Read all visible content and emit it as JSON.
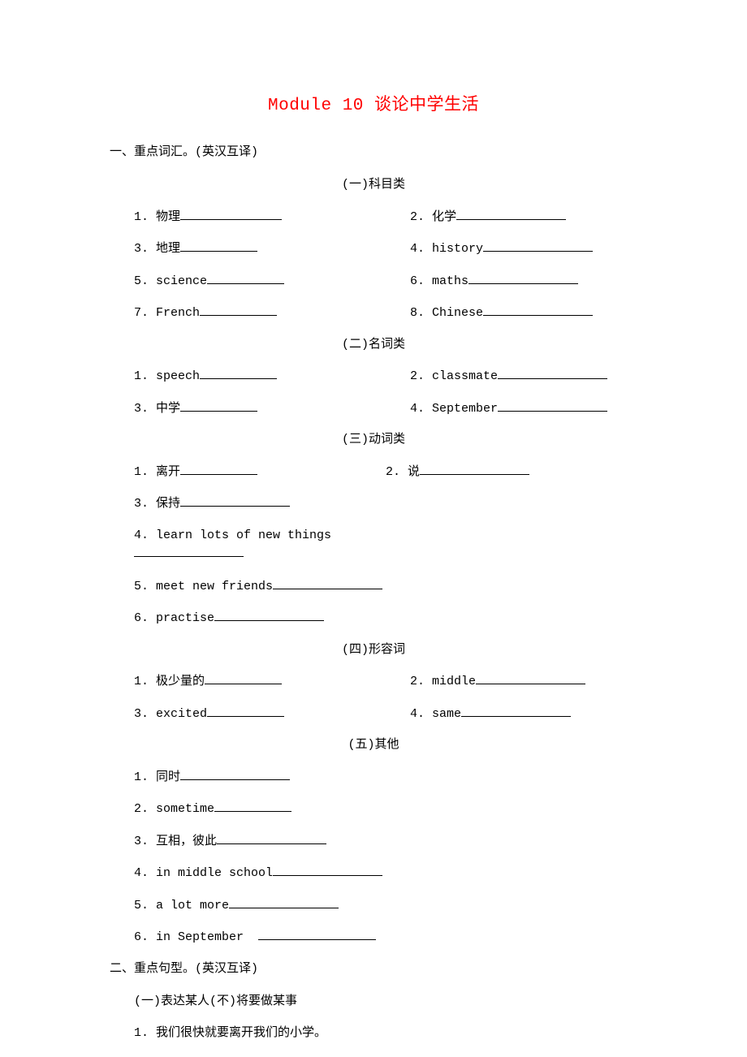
{
  "title": "Module 10 谈论中学生活",
  "section1": {
    "heading": "一、重点词汇。(英汉互译)",
    "groups": [
      {
        "heading": "(一)科目类",
        "rows": [
          {
            "l": "1. 物理",
            "lbw": "w-m",
            "r": "2. 化学",
            "rbw": "w-l"
          },
          {
            "l": "3. 地理",
            "lbw": "w-s",
            "r": "4. history",
            "rbw": "w-l"
          },
          {
            "l": "5. science",
            "lbw": "w-s",
            "r": "6. maths",
            "rbw": "w-l"
          },
          {
            "l": "7. French",
            "lbw": "w-s",
            "r": "8. Chinese",
            "rbw": "w-l"
          }
        ]
      },
      {
        "heading": "(二)名词类",
        "rows": [
          {
            "l": "1. speech",
            "lbw": "w-s",
            "r": "2. classmate",
            "rbw": "w-l"
          },
          {
            "l": "3. 中学",
            "lbw": "w-s",
            "r": "4. September",
            "rbw": "w-l"
          }
        ]
      },
      {
        "heading": "(三)动词类",
        "rows": [
          {
            "l": "1. 离开",
            "lbw": "w-s",
            "r": "2. 说",
            "rbw": "w-l",
            "lw": 310
          },
          {
            "l": "3. 保持",
            "lbw": "w-l",
            "r": ""
          },
          {
            "l": "4. learn lots of new things",
            "lbw": "w-l",
            "r": ""
          },
          {
            "l": "5. meet new friends",
            "lbw": "w-l",
            "r": ""
          },
          {
            "l": "6. practise",
            "lbw": "w-l",
            "r": ""
          }
        ]
      },
      {
        "heading": "(四)形容词",
        "rows": [
          {
            "l": "1. 极少量的",
            "lbw": "w-s",
            "r": "2. middle",
            "rbw": "w-l"
          },
          {
            "l": "3. excited",
            "lbw": "w-s",
            "r": "4. same",
            "rbw": "w-l"
          }
        ]
      },
      {
        "heading": "(五)其他",
        "rows": [
          {
            "l": "1. 同时",
            "lbw": "w-l",
            "r": ""
          },
          {
            "l": "2. sometime",
            "lbw": "w-s",
            "r": ""
          },
          {
            "l": "3. 互相，彼此",
            "lbw": "w-l",
            "r": ""
          },
          {
            "l": "4. in middle school",
            "lbw": "w-l",
            "r": ""
          },
          {
            "l": "5. a lot more",
            "lbw": "w-l",
            "r": ""
          },
          {
            "l": "6. in September  ",
            "lbw": "w-xl",
            "r": ""
          }
        ]
      }
    ]
  },
  "section2": {
    "heading": "二、重点句型。(英汉互译)",
    "sub1": "(一)表达某人(不)将要做某事",
    "item1": "1. 我们很快就要离开我们的小学。"
  }
}
